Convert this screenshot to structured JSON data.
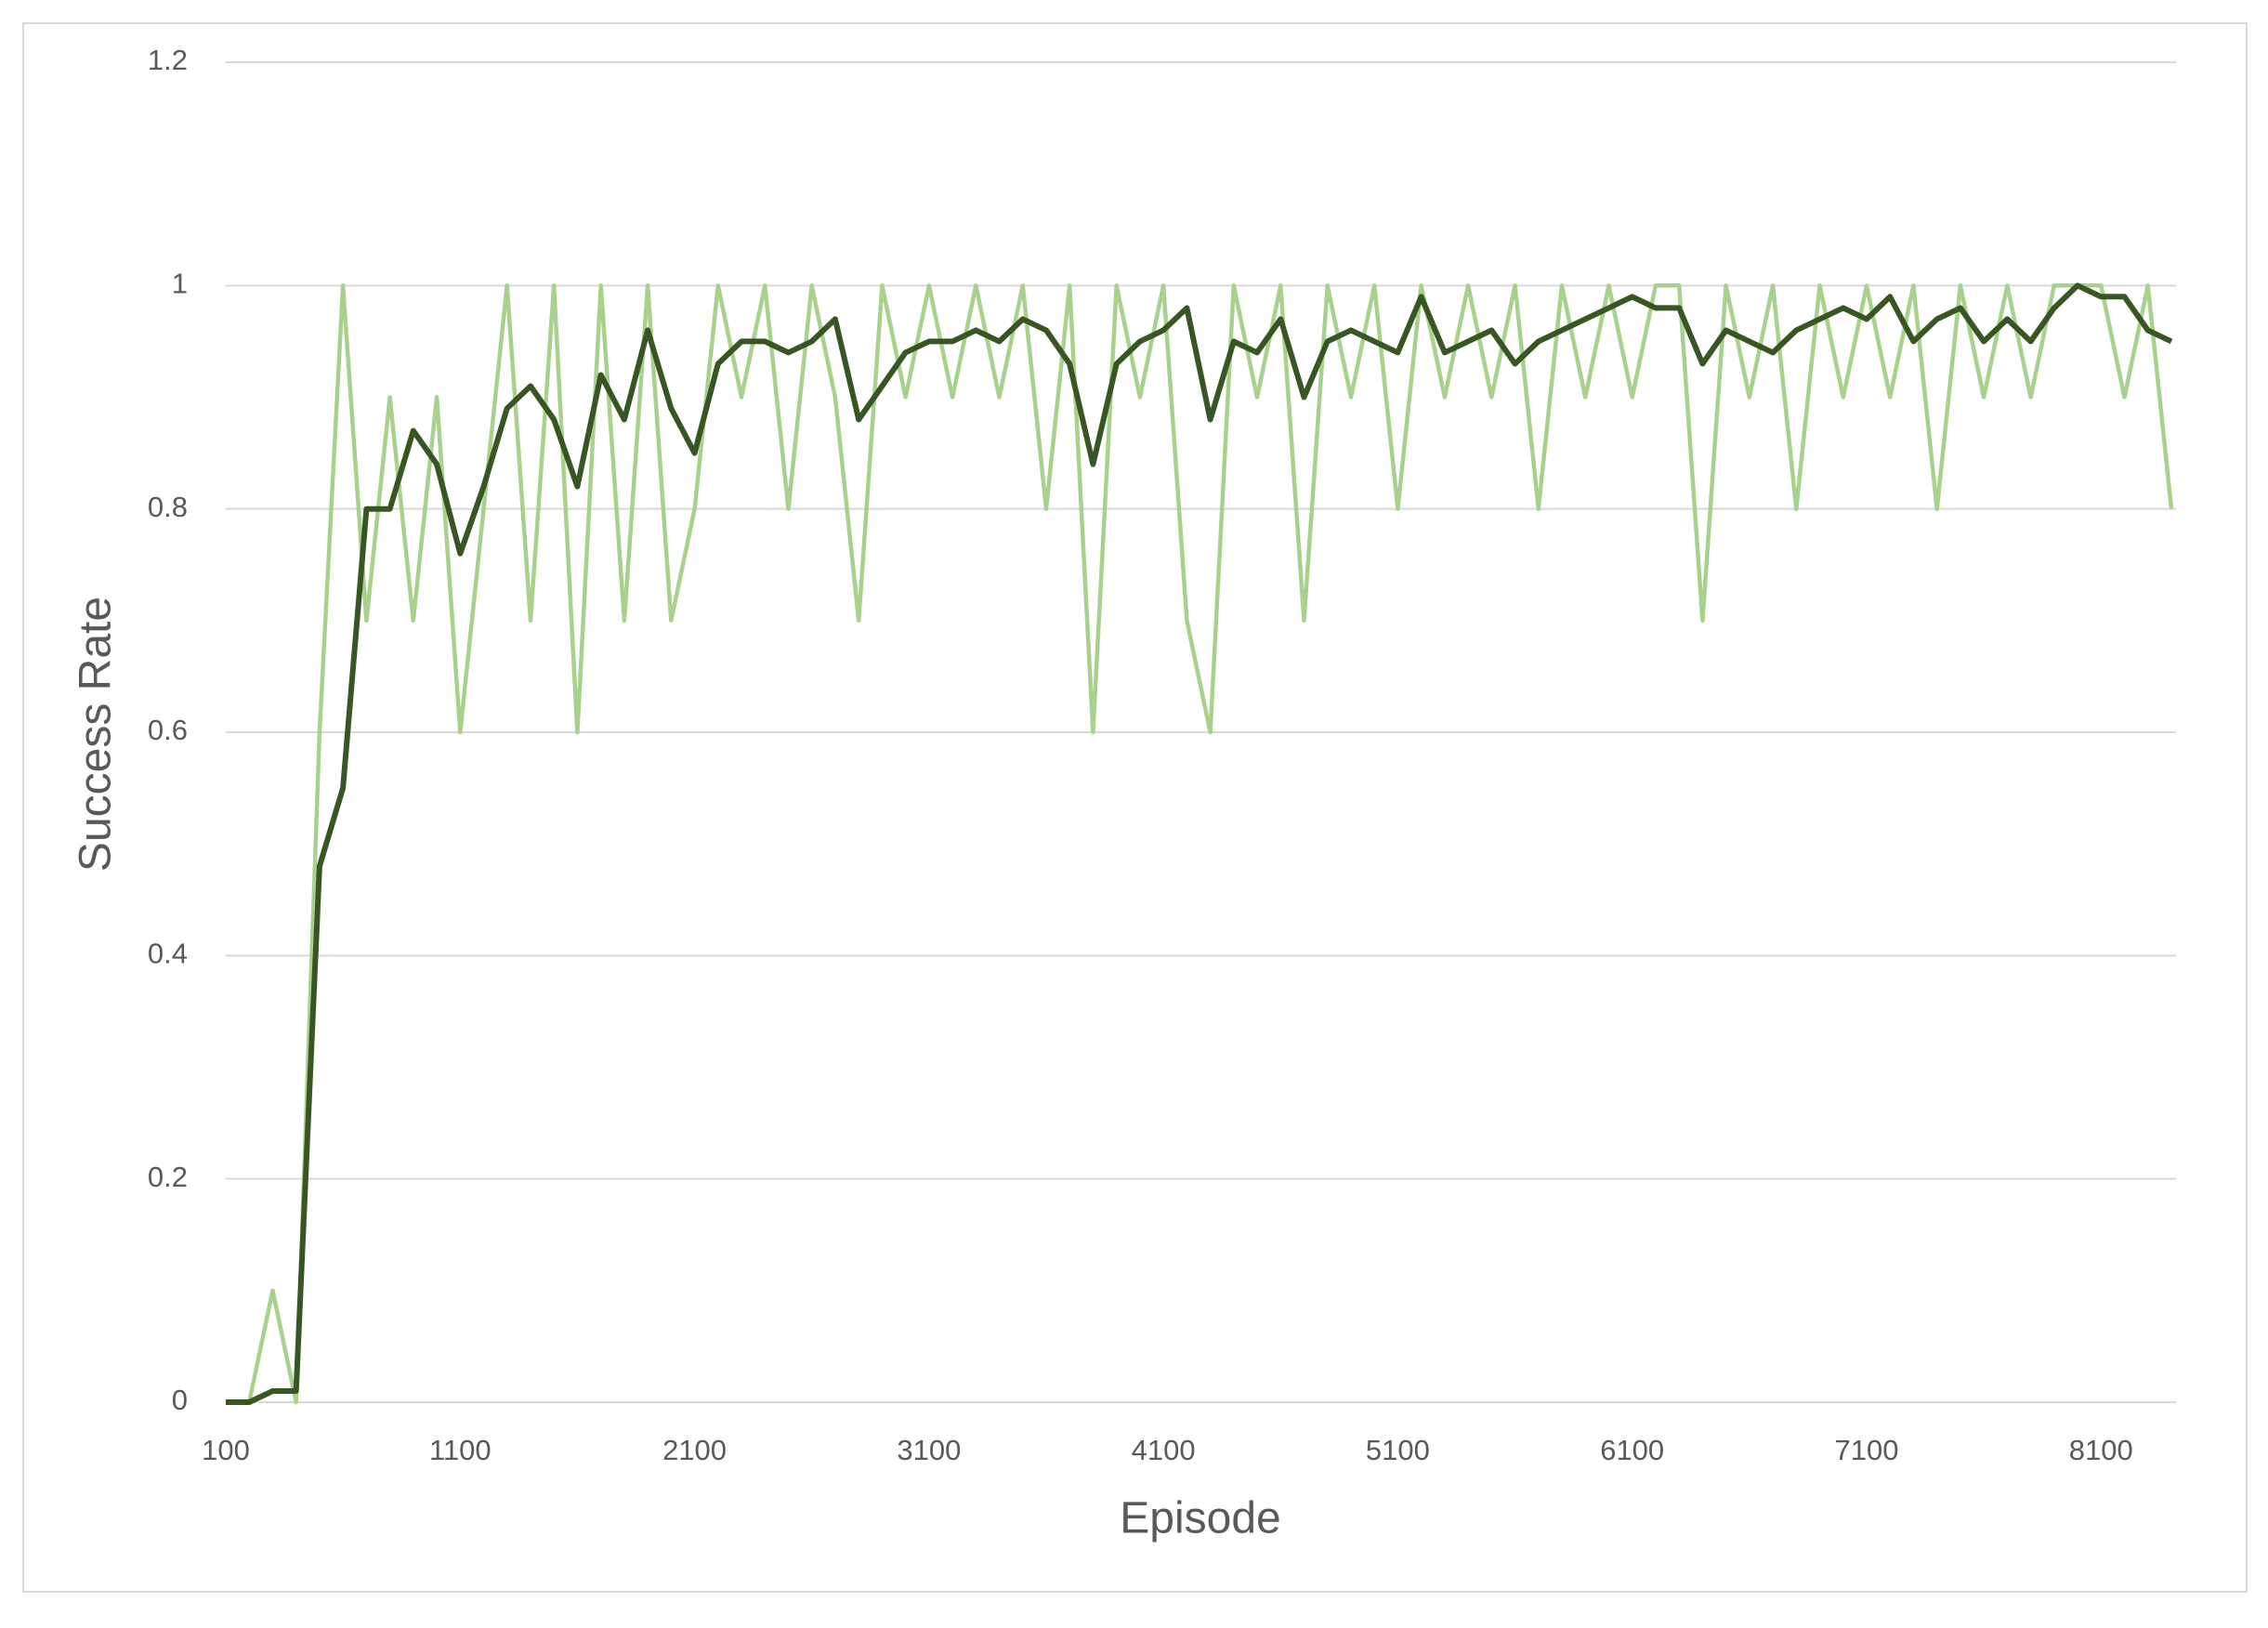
{
  "chart_data": {
    "type": "line",
    "x_label": "Episode",
    "y_label": "Success Rate",
    "x": [
      100,
      200,
      300,
      400,
      500,
      600,
      700,
      800,
      900,
      1000,
      1100,
      1200,
      1300,
      1400,
      1500,
      1600,
      1700,
      1800,
      1900,
      2000,
      2100,
      2200,
      2300,
      2400,
      2500,
      2600,
      2700,
      2800,
      2900,
      3000,
      3100,
      3200,
      3300,
      3400,
      3500,
      3600,
      3700,
      3800,
      3900,
      4000,
      4100,
      4200,
      4300,
      4400,
      4500,
      4600,
      4700,
      4800,
      4900,
      5000,
      5100,
      5200,
      5300,
      5400,
      5500,
      5600,
      5700,
      5800,
      5900,
      6000,
      6100,
      6200,
      6300,
      6400,
      6500,
      6600,
      6700,
      6800,
      6900,
      7000,
      7100,
      7200,
      7300,
      7400,
      7500,
      7600,
      7700,
      7800,
      7900,
      8000,
      8100,
      8200,
      8300,
      8400
    ],
    "series": [
      {
        "color": "#a9d18e",
        "values": [
          0,
          0,
          0.1,
          0,
          0.6,
          1,
          0.7,
          0.9,
          0.7,
          0.9,
          0.6,
          0.8,
          1,
          0.7,
          1,
          0.6,
          1,
          0.7,
          1,
          0.7,
          0.8,
          1,
          0.9,
          1,
          0.8,
          1,
          0.9,
          0.7,
          1,
          0.9,
          1,
          0.9,
          1,
          0.9,
          1,
          0.8,
          1,
          0.6,
          1,
          0.9,
          1,
          0.7,
          0.6,
          1,
          0.9,
          1,
          0.7,
          1,
          0.9,
          1,
          0.8,
          1,
          0.9,
          1,
          0.9,
          1,
          0.8,
          1,
          0.9,
          1,
          0.9,
          1,
          1,
          0.7,
          1,
          0.9,
          1,
          0.8,
          1,
          0.9,
          1,
          0.9,
          1,
          0.8,
          1,
          0.9,
          1,
          0.9,
          1,
          1,
          1,
          0.9,
          1,
          0.8
        ]
      },
      {
        "color": "#375623",
        "values": [
          0,
          0,
          0.01,
          0.01,
          0.48,
          0.55,
          0.8,
          0.8,
          0.87,
          0.84,
          0.76,
          0.82,
          0.89,
          0.91,
          0.88,
          0.82,
          0.92,
          0.88,
          0.96,
          0.89,
          0.85,
          0.93,
          0.95,
          0.95,
          0.94,
          0.95,
          0.97,
          0.88,
          0.91,
          0.94,
          0.95,
          0.95,
          0.96,
          0.95,
          0.97,
          0.96,
          0.93,
          0.84,
          0.93,
          0.95,
          0.96,
          0.98,
          0.88,
          0.95,
          0.94,
          0.97,
          0.9,
          0.95,
          0.96,
          0.95,
          0.94,
          0.99,
          0.94,
          0.95,
          0.96,
          0.93,
          0.95,
          0.96,
          0.97,
          0.98,
          0.99,
          0.98,
          0.98,
          0.93,
          0.96,
          0.95,
          0.94,
          0.96,
          0.97,
          0.98,
          0.97,
          0.99,
          0.95,
          0.97,
          0.98,
          0.95,
          0.97,
          0.95,
          0.98,
          1.0,
          0.99,
          0.99,
          0.96,
          0.95
        ]
      }
    ],
    "xlim": [
      100,
      8420
    ],
    "xticks": [
      100,
      1100,
      2100,
      3100,
      4100,
      5100,
      6100,
      7100,
      8100
    ],
    "ylim": [
      0,
      1.2
    ],
    "yticks": [
      0,
      0.2,
      0.4,
      0.6,
      0.8,
      1,
      1.2
    ],
    "grid": true
  }
}
